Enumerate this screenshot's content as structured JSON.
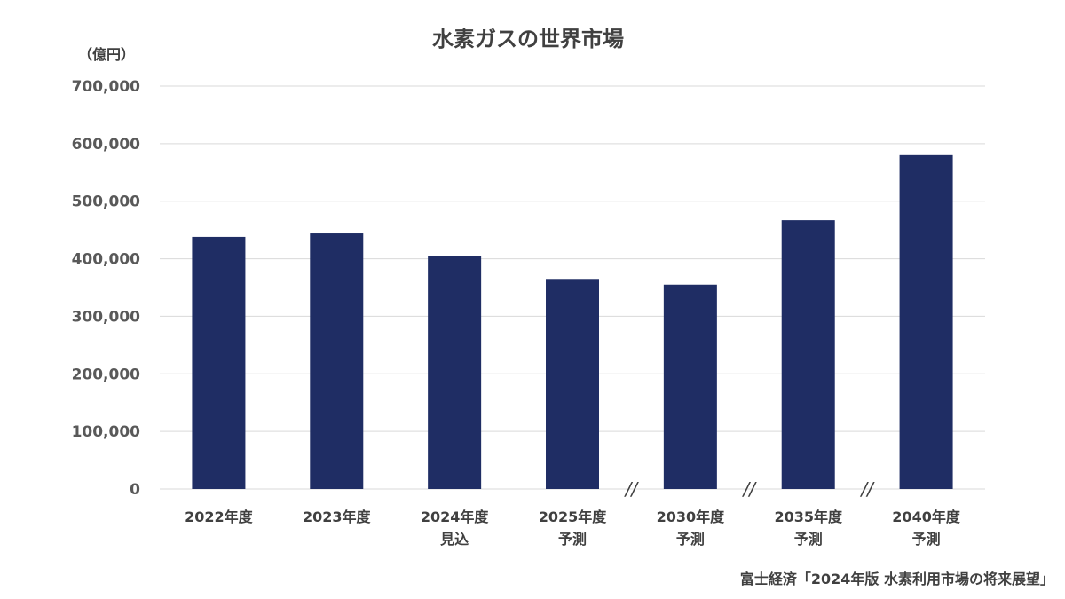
{
  "chart_data": {
    "type": "bar",
    "title": "水素ガスの世界市場",
    "ylabel": "（億円）",
    "xlabel": "",
    "categories": [
      [
        "2022年度"
      ],
      [
        "2023年度"
      ],
      [
        "2024年度",
        "見込"
      ],
      [
        "2025年度",
        "予測"
      ],
      [
        "2030年度",
        "予測"
      ],
      [
        "2035年度",
        "予測"
      ],
      [
        "2040年度",
        "予測"
      ]
    ],
    "values": [
      438000,
      444000,
      405000,
      365000,
      355000,
      467000,
      580000
    ],
    "ylim": [
      0,
      700000
    ],
    "yticks": [
      0,
      100000,
      200000,
      300000,
      400000,
      500000,
      600000,
      700000
    ],
    "ytick_labels": [
      "0",
      "100,000",
      "200,000",
      "300,000",
      "400,000",
      "500,000",
      "600,000",
      "700,000"
    ],
    "axis_break_marks": [
      "//",
      "//",
      "//"
    ],
    "grid": true,
    "bar_color": "#1f2d64",
    "source": "富士経済「2024年版 水素利用市場の将来展望」"
  }
}
